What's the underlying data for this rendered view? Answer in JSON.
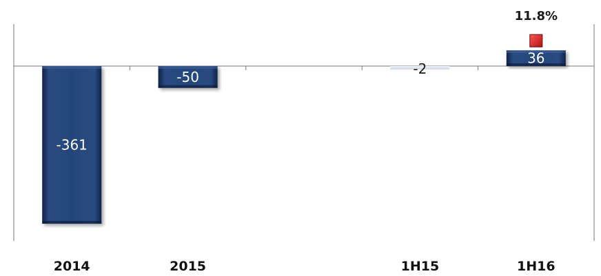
{
  "chart_data": {
    "type": "bar",
    "categories": [
      "2014",
      "2015",
      "",
      "1H15",
      "1H16"
    ],
    "values": [
      -361,
      -50,
      null,
      -2,
      36
    ],
    "value_labels": [
      "-361",
      "-50",
      "",
      "-2",
      "36"
    ],
    "ylim": [
      -400,
      120
    ],
    "grid": false,
    "colors": {
      "bar": "#1f3d6e",
      "bar_light": "#4a6fa5",
      "bar_dark": "#10254a",
      "small_bar": "#dfe6ee",
      "axis": "#777777",
      "annotation_marker": "#d61c1c"
    },
    "annotation": {
      "category": "1H16",
      "label": "11.8%",
      "marker": "red-square-icon"
    }
  }
}
